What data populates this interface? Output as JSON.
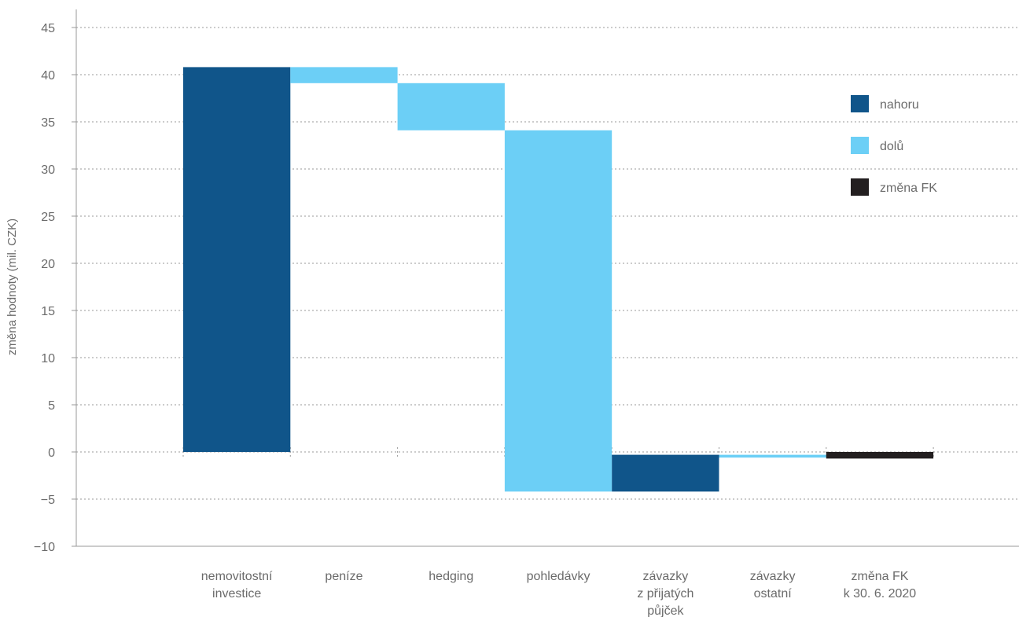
{
  "chart_data": {
    "type": "bar",
    "subtype": "waterfall",
    "title": "",
    "ylabel": "změna hodnoty (mil. CZK)",
    "ylim": [
      -10,
      45
    ],
    "yticks": [
      45,
      40,
      35,
      30,
      25,
      20,
      15,
      10,
      5,
      0,
      -5,
      -10
    ],
    "ytick_labels": [
      "45",
      "40",
      "35",
      "30",
      "25",
      "20",
      "15",
      "10",
      "5",
      "0",
      "−5",
      "−10"
    ],
    "grid": true,
    "legend_position": "right",
    "legend": [
      {
        "key": "up",
        "label": "nahoru",
        "color": "#10558a"
      },
      {
        "key": "down",
        "label": "dolů",
        "color": "#6ccff6"
      },
      {
        "key": "total",
        "label": "změna FK",
        "color": "#231f20"
      }
    ],
    "categories": [
      [
        "nemovitostní",
        "investice"
      ],
      [
        "peníze"
      ],
      [
        "hedging"
      ],
      [
        "pohledávky"
      ],
      [
        "závazky",
        "z přijatých",
        "půjček"
      ],
      [
        "závazky",
        "ostatní"
      ],
      [
        "změna FK",
        "k 30. 6. 2020"
      ]
    ],
    "bars": [
      {
        "start": 0,
        "end": 40.8,
        "kind": "up"
      },
      {
        "start": 40.8,
        "end": 39.1,
        "kind": "down"
      },
      {
        "start": 39.1,
        "end": 34.1,
        "kind": "down"
      },
      {
        "start": 34.1,
        "end": -4.2,
        "kind": "down"
      },
      {
        "start": -4.2,
        "end": -0.3,
        "kind": "up"
      },
      {
        "start": -0.3,
        "end": -0.6,
        "kind": "down"
      },
      {
        "start": 0,
        "end": -0.7,
        "kind": "total"
      }
    ]
  }
}
